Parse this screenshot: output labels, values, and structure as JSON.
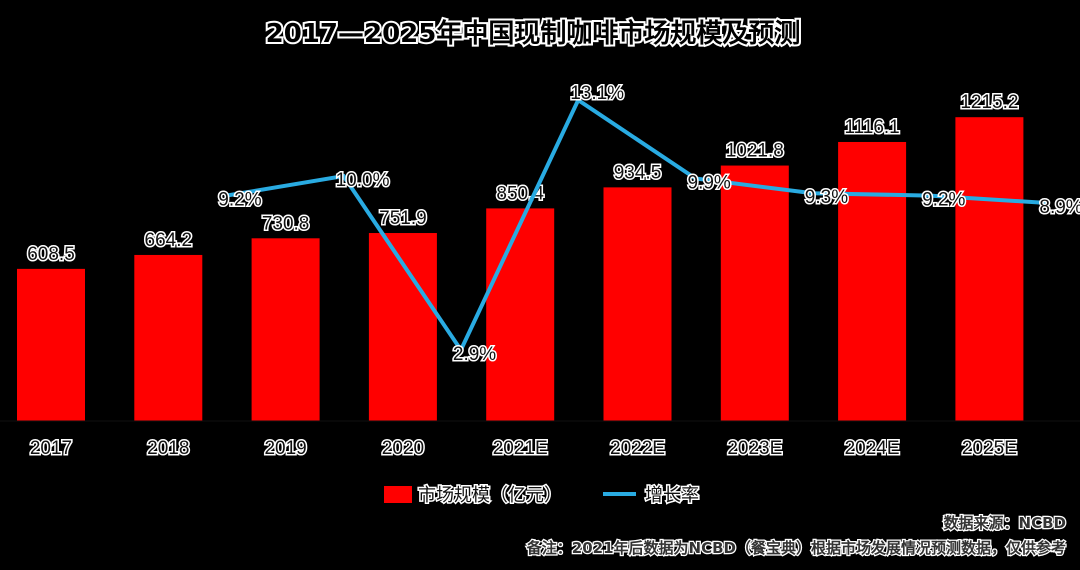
{
  "chart_data": {
    "type": "bar",
    "title": "2017—2025年中国现制咖啡市场规模及预测",
    "categories": [
      "2017",
      "2018",
      "2019",
      "2020",
      "2021E",
      "2022E",
      "2023E",
      "2024E",
      "2025E"
    ],
    "series": [
      {
        "name": "市场规模（亿元）",
        "type": "bar",
        "values": [
          608.5,
          664.2,
          730.8,
          751.9,
          850.4,
          934.5,
          1021.8,
          1116.1,
          1215.2
        ],
        "labels": [
          "608.5",
          "664.2",
          "730.8",
          "751.9",
          "850.4",
          "934.5",
          "1021.8",
          "1116.1",
          "1215.2"
        ]
      },
      {
        "name": "增长率",
        "type": "line",
        "values": [
          null,
          9.2,
          10.0,
          2.9,
          13.1,
          9.9,
          9.3,
          9.2,
          8.9
        ],
        "labels": [
          "",
          "9.2%",
          "10.0%",
          "2.9%",
          "13.1%",
          "9.9%",
          "9.3%",
          "9.2%",
          "8.9%"
        ]
      }
    ],
    "legend_position": "bottom",
    "grid": false,
    "colors": {
      "bar": "#ff0000",
      "line": "#29abe2"
    }
  },
  "notes": {
    "source": "数据来源：NCBD",
    "remark": "备注：2021年后数据为NCBD（餐宝典）根据市场发展情况预测数据，仅供参考"
  }
}
